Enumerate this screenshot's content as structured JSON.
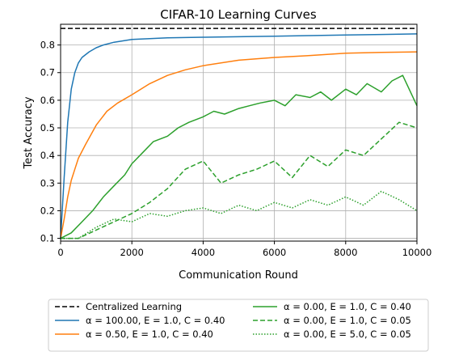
{
  "chart_data": {
    "type": "line",
    "title": "CIFAR-10 Learning Curves",
    "xlabel": "Communication Round",
    "ylabel": "Test Accuracy",
    "xlim": [
      0,
      10000
    ],
    "ylim": [
      0.09,
      0.875
    ],
    "xticks": [
      0,
      2000,
      4000,
      6000,
      8000,
      10000
    ],
    "yticks": [
      0.1,
      0.2,
      0.3,
      0.4,
      0.5,
      0.6,
      0.7,
      0.8
    ],
    "grid": true,
    "legend_placement": "below",
    "series": [
      {
        "name": "Centralized Learning",
        "color": "#000000",
        "dash": "dashed",
        "x": [
          0,
          10000
        ],
        "y": [
          0.86,
          0.86
        ]
      },
      {
        "name": "α = 100.00, E = 1.0, C = 0.40",
        "color": "#1f77b4",
        "dash": "solid",
        "x": [
          0,
          100,
          200,
          300,
          400,
          500,
          600,
          800,
          1000,
          1200,
          1500,
          2000,
          2500,
          3000,
          4000,
          5000,
          6000,
          7000,
          8000,
          9000,
          10000
        ],
        "y": [
          0.1,
          0.32,
          0.52,
          0.64,
          0.7,
          0.735,
          0.755,
          0.775,
          0.79,
          0.8,
          0.81,
          0.82,
          0.823,
          0.826,
          0.828,
          0.83,
          0.832,
          0.834,
          0.836,
          0.838,
          0.84
        ]
      },
      {
        "name": "α = 0.50, E = 1.0, C = 0.40",
        "color": "#ff7f0e",
        "dash": "solid",
        "x": [
          0,
          100,
          200,
          300,
          400,
          500,
          700,
          1000,
          1300,
          1600,
          2000,
          2500,
          3000,
          3500,
          4000,
          5000,
          6000,
          7000,
          8000,
          9000,
          10000
        ],
        "y": [
          0.1,
          0.17,
          0.25,
          0.31,
          0.35,
          0.39,
          0.44,
          0.51,
          0.56,
          0.59,
          0.62,
          0.66,
          0.69,
          0.71,
          0.725,
          0.745,
          0.755,
          0.762,
          0.77,
          0.773,
          0.775
        ]
      },
      {
        "name": "α = 0.00, E = 1.0, C = 0.40",
        "color": "#2ca02c",
        "dash": "solid",
        "x": [
          0,
          300,
          600,
          900,
          1200,
          1500,
          1800,
          2000,
          2300,
          2600,
          3000,
          3300,
          3600,
          4000,
          4300,
          4600,
          5000,
          5300,
          5600,
          6000,
          6300,
          6600,
          7000,
          7300,
          7600,
          8000,
          8300,
          8600,
          9000,
          9300,
          9600,
          10000
        ],
        "y": [
          0.1,
          0.12,
          0.16,
          0.2,
          0.25,
          0.29,
          0.33,
          0.37,
          0.41,
          0.45,
          0.47,
          0.5,
          0.52,
          0.54,
          0.56,
          0.55,
          0.57,
          0.58,
          0.59,
          0.6,
          0.58,
          0.62,
          0.61,
          0.63,
          0.6,
          0.64,
          0.62,
          0.66,
          0.63,
          0.67,
          0.69,
          0.58
        ]
      },
      {
        "name": "α = 0.00, E = 1.0, C = 0.05",
        "color": "#2ca02c",
        "dash": "dashed",
        "x": [
          0,
          500,
          1000,
          1500,
          2000,
          2500,
          3000,
          3500,
          4000,
          4500,
          5000,
          5500,
          6000,
          6500,
          7000,
          7500,
          8000,
          8500,
          9000,
          9500,
          10000
        ],
        "y": [
          0.1,
          0.1,
          0.13,
          0.16,
          0.19,
          0.23,
          0.28,
          0.35,
          0.38,
          0.3,
          0.33,
          0.35,
          0.38,
          0.32,
          0.4,
          0.36,
          0.42,
          0.4,
          0.46,
          0.52,
          0.5
        ]
      },
      {
        "name": "α = 0.00, E = 5.0, C = 0.05",
        "color": "#2ca02c",
        "dash": "dotted",
        "x": [
          0,
          500,
          1000,
          1500,
          2000,
          2500,
          3000,
          3500,
          4000,
          4500,
          5000,
          5500,
          6000,
          6500,
          7000,
          7500,
          8000,
          8500,
          9000,
          9500,
          10000
        ],
        "y": [
          0.1,
          0.1,
          0.14,
          0.17,
          0.16,
          0.19,
          0.18,
          0.2,
          0.21,
          0.19,
          0.22,
          0.2,
          0.23,
          0.21,
          0.24,
          0.22,
          0.25,
          0.22,
          0.27,
          0.24,
          0.2
        ]
      }
    ]
  }
}
